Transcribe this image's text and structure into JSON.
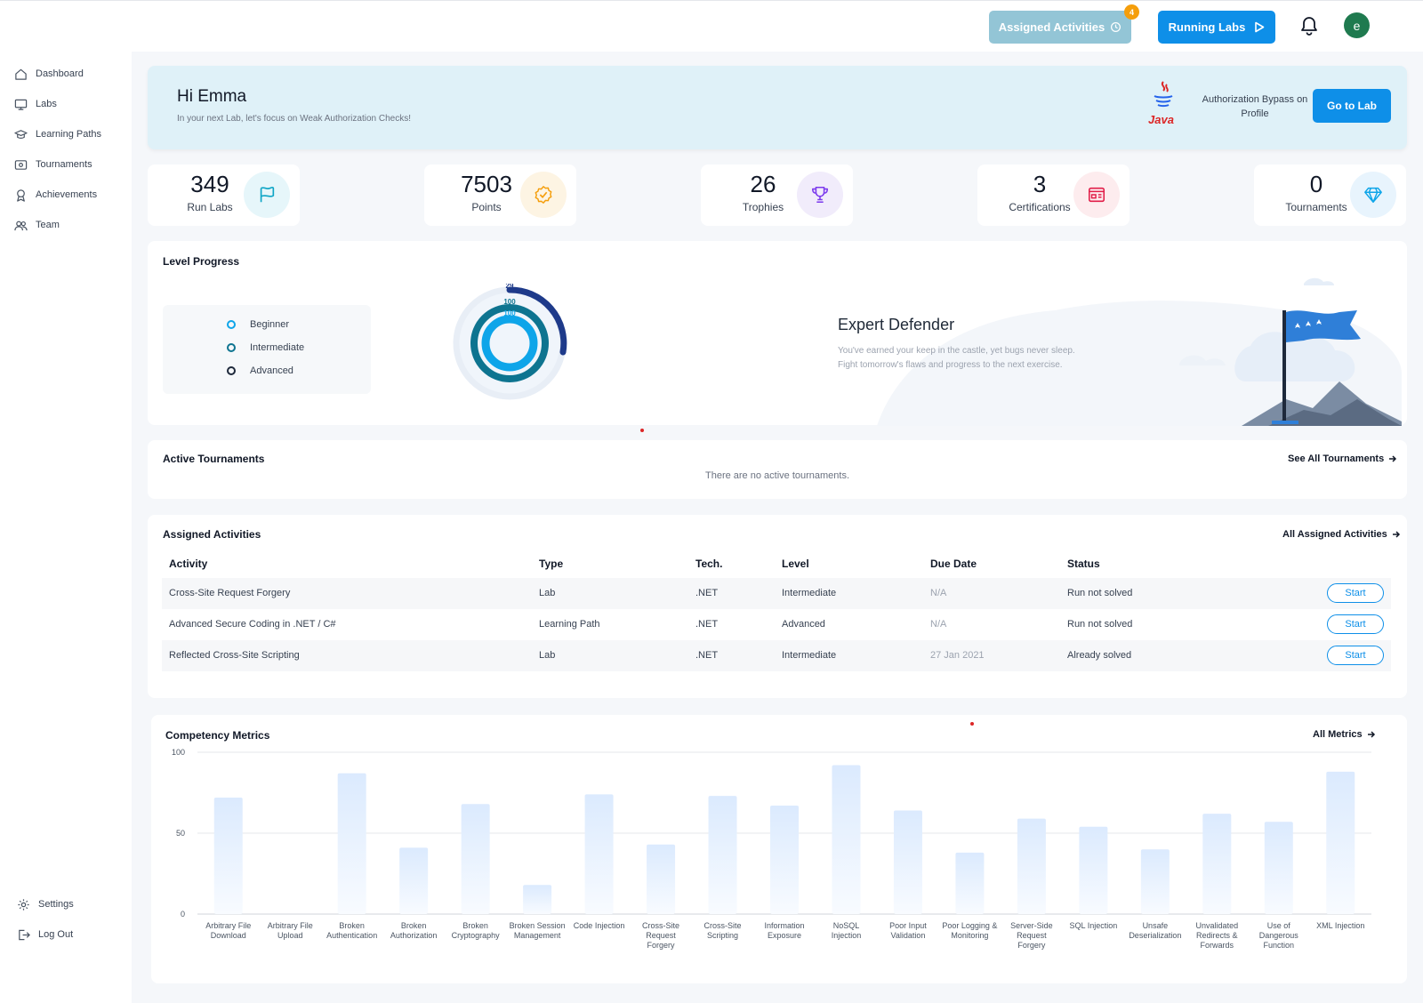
{
  "topbar": {
    "assigned_label": "Assigned Activities",
    "assigned_count": "4",
    "running_label": "Running Labs",
    "avatar_initial": "e"
  },
  "sidebar": {
    "items": [
      {
        "label": "Dashboard",
        "icon": "home-icon"
      },
      {
        "label": "Labs",
        "icon": "monitor-icon"
      },
      {
        "label": "Learning Paths",
        "icon": "graduation-cap-icon"
      },
      {
        "label": "Tournaments",
        "icon": "tournament-icon"
      },
      {
        "label": "Achievements",
        "icon": "medal-icon"
      },
      {
        "label": "Team",
        "icon": "team-icon"
      }
    ],
    "settings": "Settings",
    "logout": "Log Out"
  },
  "greeting": {
    "title": "Hi Emma",
    "subtitle": "In your next Lab, let's focus on Weak Authorization Checks!",
    "tech_logo_text": "Java",
    "lab_name": "Authorization Bypass on Profile",
    "goto_label": "Go to Lab"
  },
  "stats": [
    {
      "value": "349",
      "label": "Run Labs",
      "icon": "flag-icon",
      "color": "#0ea5c6"
    },
    {
      "value": "7503",
      "label": "Points",
      "icon": "badge-check-icon",
      "color": "#f59e0b"
    },
    {
      "value": "26",
      "label": "Trophies",
      "icon": "trophy-icon",
      "color": "#7c3aed"
    },
    {
      "value": "3",
      "label": "Certifications",
      "icon": "certificate-icon",
      "color": "#e11d48"
    },
    {
      "value": "0",
      "label": "Tournaments",
      "icon": "diamond-icon",
      "color": "#0ea5e9"
    }
  ],
  "level": {
    "title": "Level Progress",
    "legend": [
      {
        "label": "Beginner",
        "color": "#0ea5e9"
      },
      {
        "label": "Intermediate",
        "color": "#0e7490"
      },
      {
        "label": "Advanced",
        "color": "#1e3a8a"
      }
    ],
    "donut_values": {
      "advanced": "29",
      "intermediate": "100",
      "beginner": "100"
    },
    "rank_title": "Expert Defender",
    "rank_text": "You've earned your keep in the castle, yet bugs never sleep. Fight tomorrow's flaws and progress to the next exercise."
  },
  "tournaments": {
    "title": "Active Tournaments",
    "see_all": "See All Tournaments",
    "empty": "There are no active tournaments."
  },
  "assigned": {
    "title": "Assigned Activities",
    "see_all": "All Assigned Activities",
    "headers": [
      "Activity",
      "Type",
      "Tech.",
      "Level",
      "Due Date",
      "Status"
    ],
    "rows": [
      {
        "activity": "Cross-Site Request Forgery",
        "type": "Lab",
        "tech": ".NET",
        "level": "Intermediate",
        "due": "N/A",
        "status": "Run not solved",
        "action": "Start"
      },
      {
        "activity": "Advanced Secure Coding in .NET / C#",
        "type": "Learning Path",
        "tech": ".NET",
        "level": "Advanced",
        "due": "N/A",
        "status": "Run not solved",
        "action": "Start"
      },
      {
        "activity": "Reflected Cross-Site Scripting",
        "type": "Lab",
        "tech": ".NET",
        "level": "Intermediate",
        "due": "27 Jan 2021",
        "status": "Already solved",
        "action": "Start"
      }
    ]
  },
  "metrics": {
    "title": "Competency Metrics",
    "see_all": "All Metrics"
  },
  "chart_data": {
    "type": "bar",
    "title": "Competency Metrics",
    "ylim": [
      0,
      100
    ],
    "yticks": [
      0,
      50,
      100
    ],
    "grid": true,
    "categories": [
      "Arbitrary File Download",
      "Arbitrary File Upload",
      "Broken Authentication",
      "Broken Authorization",
      "Broken Cryptography",
      "Broken Session Management",
      "Code Injection",
      "Cross-Site Request Forgery",
      "Cross-Site Scripting",
      "Information Exposure",
      "NoSQL Injection",
      "Poor Input Validation",
      "Poor Logging & Monitoring",
      "Server-Side Request Forgery",
      "SQL Injection",
      "Unsafe Deserialization",
      "Unvalidated Redirects & Forwards",
      "Use of Dangerous Function",
      "XML Injection"
    ],
    "values": [
      72,
      0,
      87,
      41,
      68,
      18,
      74,
      43,
      73,
      67,
      92,
      64,
      38,
      59,
      54,
      40,
      62,
      57,
      88
    ],
    "bar_color": "#dbeafe"
  }
}
